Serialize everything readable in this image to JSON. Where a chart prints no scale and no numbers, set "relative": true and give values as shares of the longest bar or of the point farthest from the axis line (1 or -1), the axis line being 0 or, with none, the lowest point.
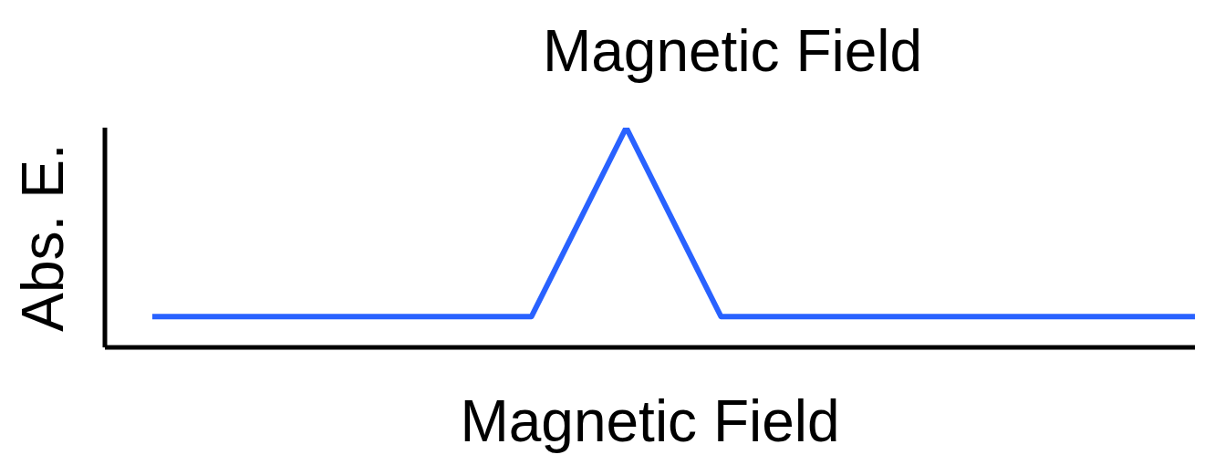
{
  "chart_data": {
    "type": "line",
    "title": "Magnetic Field",
    "xlabel": "Magnetic Field",
    "ylabel": "Abs. E.",
    "relative": true,
    "categories": [
      null,
      null,
      null,
      null,
      null,
      null,
      null,
      null,
      null,
      null,
      null,
      null
    ],
    "series": [
      {
        "color": "#2962ff",
        "values": [
          0.14,
          0.14,
          0.14,
          0.14,
          0.14,
          1,
          0.14,
          0.14,
          0.14,
          0.14,
          0.14,
          0.14
        ]
      }
    ],
    "grid": false,
    "legend": false,
    "marker": "none",
    "line_style": "solid"
  }
}
